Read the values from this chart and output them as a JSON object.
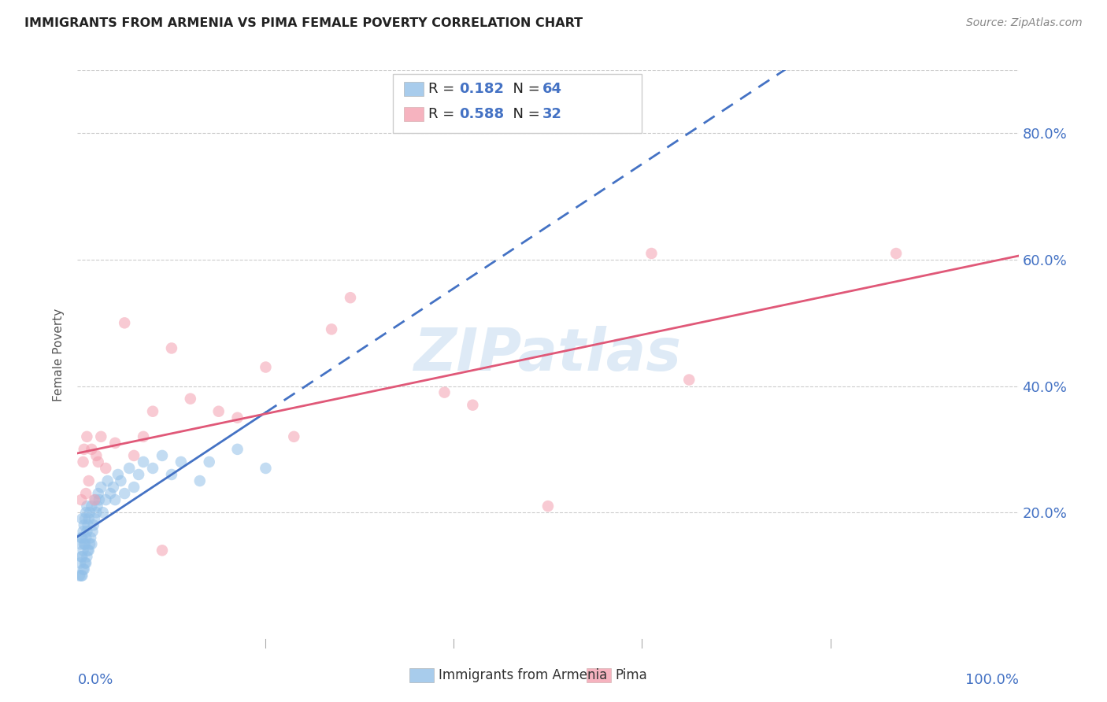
{
  "title": "IMMIGRANTS FROM ARMENIA VS PIMA FEMALE POVERTY CORRELATION CHART",
  "source": "Source: ZipAtlas.com",
  "ylabel": "Female Poverty",
  "ytick_labels": [
    "20.0%",
    "40.0%",
    "60.0%",
    "80.0%"
  ],
  "ytick_values": [
    0.2,
    0.4,
    0.6,
    0.8
  ],
  "xlim": [
    0.0,
    1.0
  ],
  "ylim": [
    0.0,
    0.9
  ],
  "blue_color": "#92c0e8",
  "pink_color": "#f4a0b0",
  "blue_line_color": "#4472c4",
  "pink_line_color": "#e05878",
  "blue_scatter_x": [
    0.002,
    0.003,
    0.003,
    0.004,
    0.004,
    0.004,
    0.005,
    0.005,
    0.005,
    0.005,
    0.006,
    0.006,
    0.006,
    0.007,
    0.007,
    0.007,
    0.008,
    0.008,
    0.008,
    0.009,
    0.009,
    0.009,
    0.01,
    0.01,
    0.01,
    0.011,
    0.011,
    0.012,
    0.012,
    0.013,
    0.013,
    0.014,
    0.015,
    0.015,
    0.016,
    0.017,
    0.018,
    0.019,
    0.02,
    0.021,
    0.022,
    0.023,
    0.025,
    0.027,
    0.03,
    0.032,
    0.035,
    0.038,
    0.04,
    0.043,
    0.046,
    0.05,
    0.055,
    0.06,
    0.065,
    0.07,
    0.08,
    0.09,
    0.1,
    0.11,
    0.13,
    0.14,
    0.17,
    0.2
  ],
  "blue_scatter_y": [
    0.1,
    0.12,
    0.15,
    0.1,
    0.13,
    0.16,
    0.1,
    0.13,
    0.16,
    0.19,
    0.11,
    0.14,
    0.17,
    0.11,
    0.15,
    0.18,
    0.12,
    0.15,
    0.19,
    0.12,
    0.16,
    0.2,
    0.13,
    0.17,
    0.21,
    0.14,
    0.18,
    0.14,
    0.19,
    0.15,
    0.2,
    0.16,
    0.15,
    0.21,
    0.17,
    0.18,
    0.19,
    0.22,
    0.2,
    0.21,
    0.23,
    0.22,
    0.24,
    0.2,
    0.22,
    0.25,
    0.23,
    0.24,
    0.22,
    0.26,
    0.25,
    0.23,
    0.27,
    0.24,
    0.26,
    0.28,
    0.27,
    0.29,
    0.26,
    0.28,
    0.25,
    0.28,
    0.3,
    0.27
  ],
  "pink_scatter_x": [
    0.004,
    0.006,
    0.007,
    0.009,
    0.01,
    0.012,
    0.015,
    0.018,
    0.02,
    0.022,
    0.025,
    0.03,
    0.04,
    0.05,
    0.06,
    0.07,
    0.08,
    0.09,
    0.1,
    0.12,
    0.15,
    0.17,
    0.2,
    0.23,
    0.27,
    0.29,
    0.39,
    0.42,
    0.5,
    0.61,
    0.65,
    0.87
  ],
  "pink_scatter_y": [
    0.22,
    0.28,
    0.3,
    0.23,
    0.32,
    0.25,
    0.3,
    0.22,
    0.29,
    0.28,
    0.32,
    0.27,
    0.31,
    0.5,
    0.29,
    0.32,
    0.36,
    0.14,
    0.46,
    0.38,
    0.36,
    0.35,
    0.43,
    0.32,
    0.49,
    0.54,
    0.39,
    0.37,
    0.21,
    0.61,
    0.41,
    0.61
  ],
  "legend_label_blue": "Immigrants from Armenia",
  "legend_label_pink": "Pima"
}
